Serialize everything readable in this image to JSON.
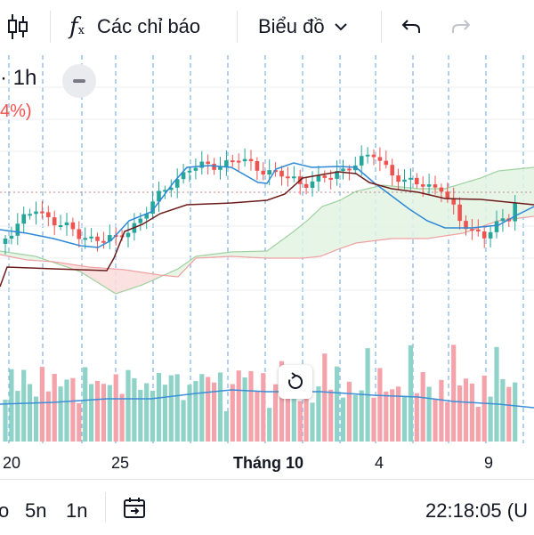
{
  "toolbar": {
    "indicators_label": "Các chỉ báo",
    "chart_type_label": "Biểu đồ"
  },
  "legend": {
    "timeframe": "· 1h",
    "change": "4%)"
  },
  "x_axis": {
    "labels": [
      "20",
      "25",
      "Tháng 10",
      "4",
      "9"
    ]
  },
  "bottom": {
    "ranges": [
      "o",
      "5n",
      "1n"
    ],
    "clock": "22:18:05 (U"
  },
  "colors": {
    "up": "#26a69a",
    "down": "#ef5350",
    "volume_up": "#8fd3c8",
    "volume_down": "#f4a3ab",
    "tenkan": "#2d89d6",
    "kijun": "#6d1b1b",
    "cloud_bull": "#e3f3e3",
    "cloud_bear": "#fbdcdc",
    "volume_ma": "#3b8ed8",
    "grid": "#2d89d6"
  }
}
